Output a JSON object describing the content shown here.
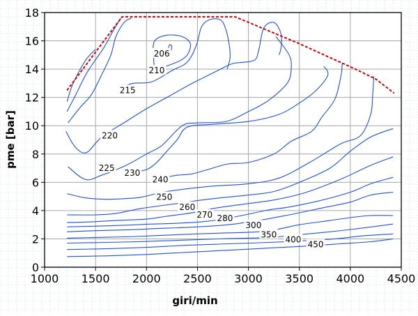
{
  "chart_data": {
    "type": "line",
    "xlabel": "giri/min",
    "ylabel": "pme [bar]",
    "xlim": [
      1000,
      4500
    ],
    "ylim": [
      0,
      18
    ],
    "x_ticks": [
      1000,
      1500,
      2000,
      2500,
      3000,
      3500,
      4000,
      4500
    ],
    "y_ticks": [
      0,
      2,
      4,
      6,
      8,
      10,
      12,
      14,
      16,
      18
    ],
    "grid": true,
    "colors": {
      "contours": "#1f4fd8",
      "boundary": "#cc0000",
      "grid": "#a6a6a6",
      "paper_grid": "#c8dcf0"
    },
    "boundary": {
      "style": "dashed",
      "points": [
        [
          1220,
          12.5
        ],
        [
          1500,
          15.2
        ],
        [
          1760,
          17.7
        ],
        [
          2870,
          17.7
        ],
        [
          3500,
          15.8
        ],
        [
          4050,
          14.0
        ],
        [
          4250,
          13.3
        ],
        [
          4430,
          12.3
        ]
      ]
    },
    "contours": [
      {
        "label": "206",
        "closed": true,
        "points": [
          [
            2215,
            15.4
          ],
          [
            2228,
            15.72
          ],
          [
            2248,
            15.62
          ],
          [
            2240,
            15.32
          ]
        ],
        "label_pos": [
          2150,
          15.1
        ]
      },
      {
        "label": "210",
        "closed": true,
        "points": [
          [
            2100,
            14.1
          ],
          [
            2070,
            15.0
          ],
          [
            2080,
            16.0
          ],
          [
            2200,
            16.4
          ],
          [
            2350,
            16.3
          ],
          [
            2430,
            15.8
          ],
          [
            2400,
            15.0
          ],
          [
            2300,
            14.5
          ]
        ],
        "label_pos": [
          2100,
          13.9
        ]
      },
      {
        "label": "215",
        "points": [
          [
            1730,
            12.65
          ],
          [
            1870,
            13.0
          ],
          [
            2050,
            13.1
          ],
          [
            2250,
            13.9
          ],
          [
            2400,
            14.5
          ],
          [
            2490,
            15.7
          ],
          [
            2540,
            17.0
          ],
          [
            2620,
            17.5
          ],
          [
            2720,
            17.5
          ],
          [
            2770,
            17.0
          ],
          [
            2810,
            15.8
          ],
          [
            2820,
            14.8
          ],
          [
            2790,
            14.0
          ]
        ],
        "label_pos": [
          1815,
          12.5
        ]
      },
      {
        "label": "220",
        "points": [
          [
            1210,
            9.6
          ],
          [
            1300,
            8.5
          ],
          [
            1410,
            8.1
          ],
          [
            1560,
            9.2
          ],
          [
            1800,
            10.3
          ],
          [
            2000,
            11.2
          ],
          [
            2250,
            12.2
          ],
          [
            2450,
            13.0
          ],
          [
            2700,
            13.9
          ],
          [
            2850,
            14.4
          ],
          [
            3050,
            14.6
          ],
          [
            3100,
            15.3
          ],
          [
            3150,
            16.9
          ],
          [
            3250,
            17.3
          ],
          [
            3320,
            16.5
          ],
          [
            3320,
            15.5
          ],
          [
            3300,
            15.0
          ]
        ],
        "label_pos": [
          1640,
          9.3
        ]
      },
      {
        "label": "225",
        "points": [
          [
            1230,
            7.1
          ],
          [
            1400,
            6.2
          ],
          [
            1560,
            6.5
          ],
          [
            1800,
            7.2
          ],
          [
            2000,
            8.0
          ],
          [
            2150,
            8.6
          ],
          [
            2350,
            10.0
          ],
          [
            2500,
            10.2
          ],
          [
            2780,
            10.3
          ],
          [
            3000,
            11.0
          ],
          [
            3200,
            11.8
          ],
          [
            3380,
            13.0
          ],
          [
            3420,
            14.0
          ],
          [
            3400,
            15.0
          ],
          [
            3270,
            16.3
          ]
        ],
        "label_pos": [
          1610,
          7.0
        ]
      },
      {
        "label": "230",
        "points": [
          [
            1780,
            6.6
          ],
          [
            1850,
            6.7
          ],
          [
            2000,
            6.9
          ],
          [
            2100,
            7.4
          ],
          [
            2200,
            8.2
          ],
          [
            2300,
            9.0
          ],
          [
            2400,
            9.9
          ],
          [
            2650,
            10.1
          ],
          [
            3000,
            10.3
          ],
          [
            3300,
            10.8
          ],
          [
            3520,
            11.7
          ],
          [
            3680,
            12.6
          ],
          [
            3780,
            13.6
          ],
          [
            3740,
            14.2
          ]
        ],
        "label_pos": [
          1860,
          6.65
        ]
      },
      {
        "label": "240",
        "points": [
          [
            2190,
            6.35
          ],
          [
            2300,
            6.5
          ],
          [
            2450,
            6.6
          ],
          [
            2600,
            6.9
          ],
          [
            2800,
            7.3
          ],
          [
            3000,
            7.4
          ],
          [
            3250,
            8.0
          ],
          [
            3420,
            8.9
          ],
          [
            3620,
            9.6
          ],
          [
            3720,
            10.6
          ],
          [
            3850,
            11.9
          ],
          [
            3910,
            13.6
          ],
          [
            3920,
            14.4
          ]
        ],
        "label_pos": [
          2135,
          6.2
        ]
      },
      {
        "label": "250",
        "points": [
          [
            1220,
            5.2
          ],
          [
            1400,
            4.9
          ],
          [
            1600,
            4.8
          ],
          [
            1800,
            4.85
          ],
          [
            1950,
            4.95
          ],
          [
            2200,
            5.35
          ],
          [
            2600,
            5.7
          ],
          [
            3000,
            5.9
          ],
          [
            3300,
            6.3
          ],
          [
            3600,
            7.4
          ],
          [
            3900,
            8.7
          ],
          [
            4100,
            9.3
          ],
          [
            4200,
            10.8
          ],
          [
            4220,
            12.2
          ],
          [
            4230,
            13.5
          ]
        ],
        "label_pos": [
          2175,
          4.95
        ]
      },
      {
        "label": "260",
        "points": [
          [
            1220,
            3.7
          ],
          [
            1500,
            3.7
          ],
          [
            1700,
            3.8
          ],
          [
            1950,
            4.15
          ],
          [
            2300,
            4.5
          ],
          [
            2600,
            4.8
          ],
          [
            3000,
            5.1
          ],
          [
            3250,
            5.35
          ],
          [
            3500,
            6.0
          ],
          [
            3800,
            7.0
          ],
          [
            4000,
            8.2
          ],
          [
            4200,
            9.2
          ],
          [
            4420,
            9.8
          ]
        ],
        "label_pos": [
          2400,
          4.25
        ]
      },
      {
        "label": "270",
        "points": [
          [
            1220,
            3.15
          ],
          [
            1450,
            3.2
          ],
          [
            1700,
            3.3
          ],
          [
            2000,
            3.4
          ],
          [
            2200,
            3.6
          ],
          [
            2450,
            3.85
          ],
          [
            2700,
            4.2
          ],
          [
            3000,
            4.5
          ],
          [
            3250,
            4.75
          ],
          [
            3550,
            5.25
          ],
          [
            3900,
            6.2
          ],
          [
            4200,
            7.2
          ],
          [
            4420,
            7.8
          ]
        ],
        "label_pos": [
          2570,
          3.7
        ]
      },
      {
        "label": "280",
        "points": [
          [
            1220,
            2.85
          ],
          [
            1500,
            2.9
          ],
          [
            1800,
            2.97
          ],
          [
            2050,
            3.05
          ],
          [
            2300,
            3.1
          ],
          [
            2600,
            3.25
          ],
          [
            2900,
            3.6
          ],
          [
            3200,
            4.05
          ],
          [
            3400,
            4.25
          ],
          [
            3700,
            4.7
          ],
          [
            4000,
            5.3
          ],
          [
            4200,
            5.9
          ],
          [
            4420,
            6.35
          ]
        ],
        "label_pos": [
          2770,
          3.45
        ]
      },
      {
        "label": "300",
        "points": [
          [
            1220,
            2.5
          ],
          [
            1500,
            2.58
          ],
          [
            1850,
            2.65
          ],
          [
            2100,
            2.73
          ],
          [
            2450,
            2.83
          ],
          [
            2800,
            3.0
          ],
          [
            3100,
            3.3
          ],
          [
            3400,
            3.7
          ],
          [
            3700,
            4.15
          ],
          [
            4000,
            4.6
          ],
          [
            4200,
            5.1
          ],
          [
            4420,
            5.3
          ]
        ],
        "label_pos": [
          3050,
          2.95
        ]
      },
      {
        "label": "350",
        "points": [
          [
            1220,
            2.05
          ],
          [
            1500,
            2.1
          ],
          [
            1900,
            2.17
          ],
          [
            2300,
            2.3
          ],
          [
            2700,
            2.4
          ],
          [
            3100,
            2.5
          ],
          [
            3300,
            2.7
          ],
          [
            3500,
            3.0
          ],
          [
            3800,
            3.3
          ],
          [
            4000,
            3.5
          ],
          [
            4200,
            3.65
          ],
          [
            4420,
            3.65
          ]
        ],
        "label_pos": [
          3200,
          2.3
        ]
      },
      {
        "label": "400",
        "points": [
          [
            1220,
            1.7
          ],
          [
            1600,
            1.75
          ],
          [
            2000,
            1.82
          ],
          [
            2400,
            1.92
          ],
          [
            2800,
            2.02
          ],
          [
            3200,
            2.1
          ],
          [
            3500,
            2.3
          ],
          [
            3800,
            2.5
          ],
          [
            4100,
            2.75
          ],
          [
            4420,
            3.05
          ]
        ],
        "label_pos": [
          3440,
          1.95
        ]
      },
      {
        "label": "450",
        "points": [
          [
            1220,
            1.25
          ],
          [
            1600,
            1.3
          ],
          [
            2000,
            1.4
          ],
          [
            2400,
            1.55
          ],
          [
            2800,
            1.65
          ],
          [
            3200,
            1.75
          ],
          [
            3500,
            1.85
          ],
          [
            3850,
            2.0
          ],
          [
            4100,
            2.2
          ],
          [
            4420,
            2.35
          ]
        ],
        "label_pos": [
          3660,
          1.6
        ]
      },
      {
        "label": "",
        "points": [
          [
            1220,
            0.75
          ],
          [
            1600,
            0.8
          ],
          [
            2000,
            0.9
          ],
          [
            2400,
            1.05
          ],
          [
            2800,
            1.2
          ],
          [
            3200,
            1.35
          ],
          [
            3600,
            1.5
          ],
          [
            3900,
            1.65
          ],
          [
            4200,
            1.8
          ],
          [
            4420,
            2.0
          ]
        ],
        "label_pos": null
      },
      {
        "label": "",
        "points": [
          [
            1220,
            11.7
          ],
          [
            1280,
            13.0
          ],
          [
            1400,
            14.6
          ],
          [
            1500,
            15.4
          ]
        ],
        "label_pos": null
      },
      {
        "label": "",
        "points": [
          [
            1220,
            11.0
          ],
          [
            1300,
            12.1
          ],
          [
            1420,
            13.8
          ],
          [
            1580,
            15.5
          ],
          [
            1680,
            16.8
          ],
          [
            1750,
            17.6
          ]
        ],
        "label_pos": null
      },
      {
        "label": "",
        "points": [
          [
            1230,
            10.2
          ],
          [
            1350,
            11.3
          ],
          [
            1460,
            12.2
          ],
          [
            1560,
            13.6
          ],
          [
            1650,
            15.0
          ],
          [
            1700,
            16.3
          ],
          [
            1780,
            17.3
          ],
          [
            1850,
            17.6
          ]
        ],
        "label_pos": null
      }
    ]
  }
}
